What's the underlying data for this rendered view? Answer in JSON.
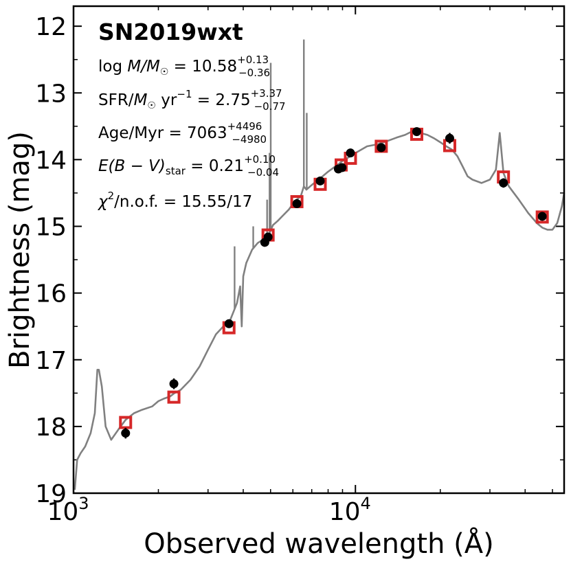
{
  "chart_data": {
    "type": "scatter",
    "title": "SN2019wxt",
    "xlabel": "Observed wavelength (Å)",
    "ylabel": "Brightness (mag)",
    "xscale": "log",
    "xlim": [
      1000,
      55000
    ],
    "ylim": [
      19.0,
      11.7
    ],
    "y_inverted": true,
    "x_tick_labels": [
      "10",
      "10"
    ],
    "x_tick_exponents": [
      "3",
      "4"
    ],
    "x_tick_values": [
      1000,
      10000
    ],
    "y_tick_labels": [
      "12",
      "13",
      "14",
      "15",
      "16",
      "17",
      "18",
      "19"
    ],
    "y_tick_values": [
      12,
      13,
      14,
      15,
      16,
      17,
      18,
      19
    ],
    "annotations": {
      "mass": {
        "prefix": "log ",
        "var": "M/M",
        "sun": "☉",
        "eq": " = 10.58",
        "sup": "+0.13",
        "sub": "−0.36"
      },
      "sfr": {
        "prefix": "SFR/",
        "var": "M",
        "sun": "☉",
        "unit": " yr",
        "unit_sup": "−1",
        "eq": " = 2.75",
        "sup": "+3.37",
        "sub": "−0.77"
      },
      "age": {
        "prefix": "Age/Myr = 7063",
        "sup": "+4496",
        "sub": "−4980"
      },
      "ebv": {
        "var": "E(B − V)",
        "subscript": "star",
        "eq": " = 0.21",
        "sup": "+0.10",
        "sub": "−0.04"
      },
      "chi": {
        "var": "χ",
        "exp": "2",
        "eq": "/n.o.f. = 15.55/17"
      }
    },
    "colors": {
      "model": "#808080",
      "model_phot": "#d62728",
      "observed": "#000000"
    },
    "observed_points": {
      "x": [
        1530,
        2270,
        3560,
        4770,
        4900,
        6200,
        7500,
        8700,
        8960,
        9600,
        12350,
        16500,
        21600,
        33500,
        46000
      ],
      "y": [
        18.1,
        17.36,
        16.46,
        15.24,
        15.16,
        14.66,
        14.32,
        14.14,
        14.12,
        13.9,
        13.82,
        13.58,
        13.68,
        14.35,
        14.85
      ],
      "yerr": [
        0.08,
        0.08,
        0.03,
        0.03,
        0.03,
        0.03,
        0.03,
        0.03,
        0.03,
        0.03,
        0.03,
        0.03,
        0.08,
        0.07,
        0.06
      ]
    },
    "model_photometry": {
      "x": [
        1530,
        2270,
        3560,
        4900,
        6200,
        7500,
        8900,
        9600,
        12350,
        16500,
        21600,
        33500,
        46000
      ],
      "y": [
        17.94,
        17.56,
        16.52,
        15.13,
        14.63,
        14.37,
        14.08,
        13.98,
        13.8,
        13.62,
        13.79,
        14.26,
        14.86
      ]
    },
    "model_spectrum": {
      "x": [
        1010,
        1030,
        1060,
        1100,
        1150,
        1190,
        1215,
        1230,
        1260,
        1300,
        1360,
        1440,
        1530,
        1640,
        1750,
        1900,
        2000,
        2100,
        2200,
        2280,
        2400,
        2600,
        2800,
        3000,
        3200,
        3400,
        3600,
        3800,
        3900,
        3950,
        4000,
        4100,
        4300,
        4500,
        4700,
        4860,
        4960,
        5100,
        5300,
        5500,
        5800,
        6100,
        6400,
        6563,
        6700,
        7000,
        7500,
        8000,
        8500,
        9000,
        9500,
        10000,
        11000,
        12000,
        13000,
        14000,
        15000,
        16000,
        17000,
        18000,
        19000,
        20000,
        21000,
        22000,
        23000,
        24000,
        25000,
        26000,
        28000,
        30000,
        31500,
        32500,
        33500,
        35000,
        38000,
        41000,
        44000,
        46000,
        48000,
        50000,
        52000,
        54000,
        55000
      ],
      "y": [
        18.95,
        18.5,
        18.4,
        18.3,
        18.1,
        17.8,
        17.15,
        17.15,
        17.4,
        18.0,
        18.2,
        18.05,
        17.9,
        17.8,
        17.75,
        17.7,
        17.62,
        17.58,
        17.55,
        17.5,
        17.45,
        17.3,
        17.1,
        16.85,
        16.62,
        16.5,
        16.4,
        16.15,
        15.9,
        16.5,
        15.75,
        15.55,
        15.35,
        15.25,
        15.2,
        15.15,
        15.1,
        14.98,
        14.92,
        14.85,
        14.75,
        14.62,
        14.55,
        14.4,
        14.45,
        14.38,
        14.28,
        14.18,
        14.1,
        14.02,
        13.96,
        13.9,
        13.8,
        13.77,
        13.72,
        13.67,
        13.63,
        13.57,
        13.6,
        13.63,
        13.68,
        13.74,
        13.8,
        13.85,
        13.95,
        14.1,
        14.25,
        14.3,
        14.35,
        14.3,
        14.15,
        13.6,
        14.2,
        14.4,
        14.6,
        14.8,
        14.95,
        15.02,
        15.05,
        15.05,
        14.95,
        14.7,
        14.5
      ]
    },
    "model_spikes": [
      {
        "x": 3727,
        "y": 15.3
      },
      {
        "x": 4340,
        "y": 15.0
      },
      {
        "x": 4861,
        "y": 14.6
      },
      {
        "x": 4959,
        "y": 13.9
      },
      {
        "x": 5007,
        "y": 12.55
      },
      {
        "x": 6563,
        "y": 12.2
      },
      {
        "x": 6720,
        "y": 13.3
      }
    ]
  }
}
